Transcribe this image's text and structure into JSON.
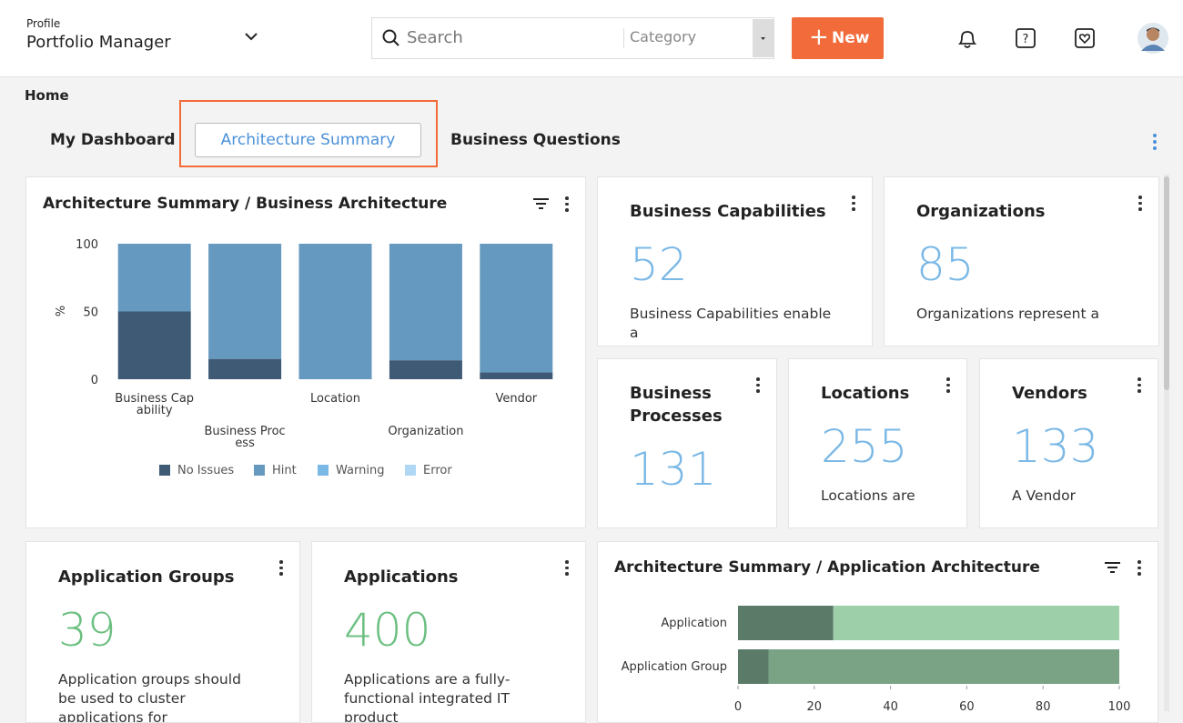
{
  "header": {
    "profile_label": "Profile",
    "profile_name": "Portfolio Manager",
    "search_placeholder": "Search",
    "category": "Category",
    "new_button": "New"
  },
  "breadcrumb": "Home",
  "tabs": [
    "My Dashboard",
    "Architecture Summary",
    "Business Questions"
  ],
  "business_chart": {
    "type": "bar",
    "stacked": true,
    "title": "Architecture Summary / Business Architecture",
    "y_label": "%",
    "categories": [
      "Business Capability",
      "Business Process",
      "Location",
      "Organization",
      "Vendor"
    ],
    "ylim": [
      0,
      100
    ],
    "yticks": [
      0,
      50,
      100
    ],
    "series": [
      {
        "name": "No Issues",
        "color": "#3e5a74",
        "values": [
          50,
          15,
          0,
          14,
          5
        ]
      },
      {
        "name": "Hint",
        "color": "#6699bf",
        "values": [
          50,
          85,
          100,
          86,
          95
        ]
      },
      {
        "name": "Warning",
        "color": "#7ab8e6",
        "values": [
          0,
          0,
          0,
          0,
          0
        ]
      },
      {
        "name": "Error",
        "color": "#b0d8f5",
        "values": [
          0,
          0,
          0,
          0,
          0
        ]
      }
    ]
  },
  "cards": [
    {
      "title": "Business Capabilities",
      "value": 52,
      "color": "#7ab8e6",
      "description": "Business Capabilities enable a"
    },
    {
      "title": "Organizations",
      "value": 85,
      "color": "#7ab8e6",
      "description": "Organizations represent a"
    },
    {
      "title": "Business Processes",
      "value": 131,
      "color": "#7ab8e6"
    },
    {
      "title": "Locations",
      "value": 255,
      "color": "#7ab8e6",
      "description": "Locations are"
    },
    {
      "title": "Vendors",
      "value": 133,
      "color": "#7ab8e6",
      "description": "A Vendor"
    },
    {
      "title": "Application Groups",
      "value": 39,
      "color": "#6bbf80",
      "description": "Application groups should be used to cluster applications for"
    },
    {
      "title": "Applications",
      "value": 400,
      "color": "#6bbf80",
      "description": "Applications are a fully-functional integrated IT product"
    }
  ],
  "application_chart": {
    "type": "bar",
    "orientation": "horizontal",
    "stacked": true,
    "title": "Architecture Summary / Application Architecture",
    "categories": [
      "Application",
      "Application Group"
    ],
    "xlim": [
      0,
      100
    ],
    "xticks": [
      0,
      20,
      40,
      60,
      80,
      100
    ],
    "series": [
      {
        "colors": [
          "#5b7a68",
          "#5b7a68"
        ],
        "values": [
          25,
          8
        ]
      },
      {
        "colors": [
          "#9dcfa9",
          "#7aa386"
        ],
        "values": [
          75,
          92
        ]
      }
    ]
  }
}
